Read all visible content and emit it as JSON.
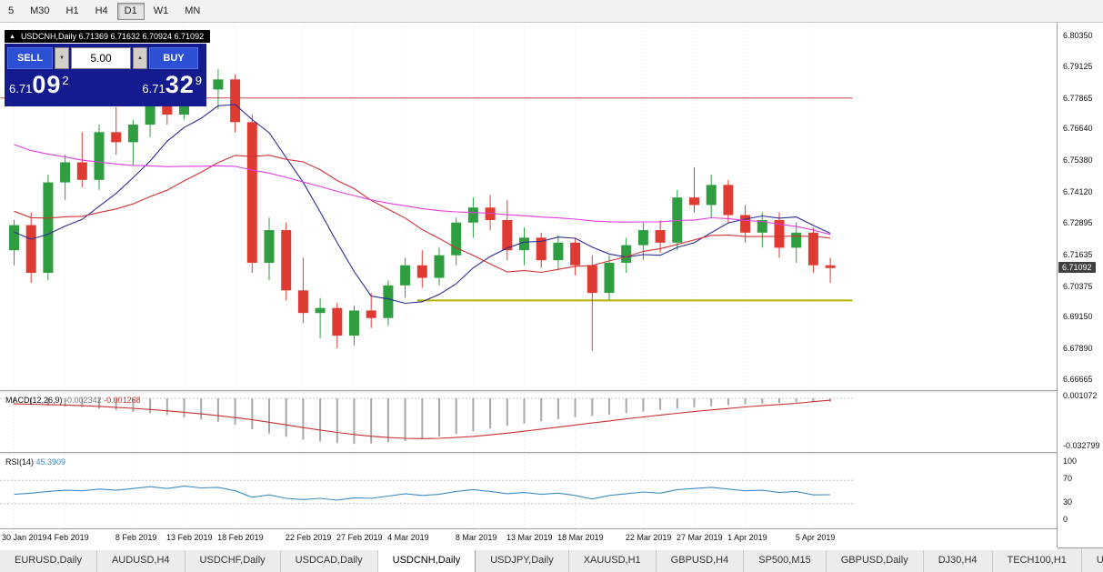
{
  "toolbar": {
    "periods": [
      {
        "label": "5",
        "active": false
      },
      {
        "label": "M30",
        "active": false
      },
      {
        "label": "H1",
        "active": false
      },
      {
        "label": "H4",
        "active": false
      },
      {
        "label": "D1",
        "active": true
      },
      {
        "label": "W1",
        "active": false
      },
      {
        "label": "MN",
        "active": false
      }
    ]
  },
  "ohlc_bar": {
    "collapse_icon": "▲",
    "text": "USDCNH,Daily 6.71369 6.71632 6.70924 6.71092"
  },
  "trade_panel": {
    "sell_label": "SELL",
    "buy_label": "BUY",
    "volume": "5.00",
    "down_glyph": "▼",
    "up_glyph": "▲",
    "sell_price": {
      "small": "6.71",
      "big": "09",
      "sup": "2"
    },
    "buy_price": {
      "small": "6.71",
      "big": "32",
      "sup": "9"
    }
  },
  "price_axis": {
    "labels": [
      "6.80350",
      "6.79125",
      "6.77865",
      "6.76640",
      "6.75380",
      "6.74120",
      "6.72895",
      "6.71635",
      "6.70375",
      "6.69150",
      "6.67890",
      "6.66665"
    ],
    "current": "6.71092"
  },
  "macd_panel": {
    "label": "MACD(12,26,9)",
    "value_main": "-0.002342",
    "value_signal": "-0.001268",
    "axis_top": "0.001072",
    "axis_bottom": "-0.032799"
  },
  "rsi_panel": {
    "label": "RSI(14)",
    "value": "45.3909",
    "levels": [
      "100",
      "70",
      "30",
      "0"
    ]
  },
  "date_axis": {
    "labels": [
      {
        "text": "30 Jan 2019",
        "index": 0
      },
      {
        "text": "4 Feb 2019",
        "index": 3
      },
      {
        "text": "8 Feb 2019",
        "index": 7
      },
      {
        "text": "13 Feb 2019",
        "index": 10
      },
      {
        "text": "18 Feb 2019",
        "index": 13
      },
      {
        "text": "22 Feb 2019",
        "index": 17
      },
      {
        "text": "27 Feb 2019",
        "index": 20
      },
      {
        "text": "4 Mar 2019",
        "index": 23
      },
      {
        "text": "8 Mar 2019",
        "index": 27
      },
      {
        "text": "13 Mar 2019",
        "index": 30
      },
      {
        "text": "18 Mar 2019",
        "index": 33
      },
      {
        "text": "22 Mar 2019",
        "index": 37
      },
      {
        "text": "27 Mar 2019",
        "index": 40
      },
      {
        "text": "1 Apr 2019",
        "index": 43
      },
      {
        "text": "5 Apr 2019",
        "index": 47
      }
    ]
  },
  "tabs": {
    "items": [
      {
        "label": "EURUSD,Daily",
        "active": false
      },
      {
        "label": "AUDUSD,H4",
        "active": false
      },
      {
        "label": "USDCHF,Daily",
        "active": false
      },
      {
        "label": "USDCAD,Daily",
        "active": false
      },
      {
        "label": "USDCNH,Daily",
        "active": true
      },
      {
        "label": "USDJPY,Daily",
        "active": false
      },
      {
        "label": "XAUUSD,H1",
        "active": false
      },
      {
        "label": "GBPUSD,H4",
        "active": false
      },
      {
        "label": "SP500,M15",
        "active": false
      },
      {
        "label": "GBPUSD,Daily",
        "active": false
      },
      {
        "label": "DJ30,H4",
        "active": false
      },
      {
        "label": "TECH100,H1",
        "active": false
      },
      {
        "label": "UKC",
        "active": false
      }
    ]
  },
  "chart_data": {
    "type": "candlestick",
    "symbol": "USDCNH",
    "timeframe": "Daily",
    "ohlc_display": {
      "open": "6.71369",
      "high": "6.71632",
      "low": "6.70924",
      "close": "6.71092"
    },
    "current_price": 6.71092,
    "dates": [
      "2019-01-30",
      "2019-01-31",
      "2019-02-01",
      "2019-02-04",
      "2019-02-05",
      "2019-02-06",
      "2019-02-07",
      "2019-02-08",
      "2019-02-11",
      "2019-02-12",
      "2019-02-13",
      "2019-02-14",
      "2019-02-15",
      "2019-02-18",
      "2019-02-19",
      "2019-02-20",
      "2019-02-21",
      "2019-02-22",
      "2019-02-25",
      "2019-02-26",
      "2019-02-27",
      "2019-02-28",
      "2019-03-01",
      "2019-03-04",
      "2019-03-05",
      "2019-03-06",
      "2019-03-07",
      "2019-03-08",
      "2019-03-11",
      "2019-03-12",
      "2019-03-13",
      "2019-03-14",
      "2019-03-15",
      "2019-03-18",
      "2019-03-19",
      "2019-03-20",
      "2019-03-21",
      "2019-03-22",
      "2019-03-25",
      "2019-03-26",
      "2019-03-27",
      "2019-03-28",
      "2019-03-29",
      "2019-04-01",
      "2019-04-02",
      "2019-04-03",
      "2019-04-04",
      "2019-04-05",
      "2019-04-08"
    ],
    "candles": {
      "o": [
        6.718,
        6.728,
        6.709,
        6.745,
        6.753,
        6.746,
        6.765,
        6.761,
        6.768,
        6.781,
        6.772,
        6.789,
        6.782,
        6.786,
        6.769,
        6.713,
        6.726,
        6.702,
        6.693,
        6.695,
        6.684,
        6.694,
        6.691,
        6.704,
        6.712,
        6.707,
        6.716,
        6.729,
        6.735,
        6.73,
        6.718,
        6.723,
        6.714,
        6.721,
        6.712,
        6.701,
        6.713,
        6.72,
        6.726,
        6.721,
        6.739,
        6.736,
        6.744,
        6.732,
        6.725,
        6.73,
        6.719,
        6.725,
        6.712
      ],
      "h": [
        6.73,
        6.733,
        6.748,
        6.756,
        6.765,
        6.768,
        6.775,
        6.77,
        6.784,
        6.788,
        6.792,
        6.7925,
        6.79,
        6.788,
        6.772,
        6.731,
        6.729,
        6.715,
        6.699,
        6.697,
        6.696,
        6.701,
        6.706,
        6.715,
        6.718,
        6.719,
        6.731,
        6.739,
        6.74,
        6.738,
        6.727,
        6.725,
        6.724,
        6.723,
        6.716,
        6.716,
        6.723,
        6.729,
        6.73,
        6.742,
        6.751,
        6.748,
        6.746,
        6.736,
        6.733,
        6.733,
        6.729,
        6.727,
        6.715
      ],
      "l": [
        6.712,
        6.705,
        6.706,
        6.738,
        6.743,
        6.742,
        6.756,
        6.752,
        6.763,
        6.768,
        6.77,
        6.778,
        6.774,
        6.765,
        6.709,
        6.706,
        6.698,
        6.689,
        6.683,
        6.679,
        6.68,
        6.687,
        6.688,
        6.699,
        6.703,
        6.704,
        6.712,
        6.723,
        6.726,
        6.714,
        6.712,
        6.711,
        6.71,
        6.708,
        6.678,
        6.698,
        6.709,
        6.714,
        6.717,
        6.718,
        6.733,
        6.731,
        6.729,
        6.721,
        6.719,
        6.715,
        6.713,
        6.709,
        6.705
      ],
      "c": [
        6.728,
        6.709,
        6.745,
        6.753,
        6.746,
        6.765,
        6.761,
        6.768,
        6.781,
        6.772,
        6.789,
        6.782,
        6.786,
        6.769,
        6.713,
        6.726,
        6.702,
        6.693,
        6.695,
        6.684,
        6.694,
        6.691,
        6.704,
        6.712,
        6.707,
        6.716,
        6.729,
        6.735,
        6.73,
        6.718,
        6.723,
        6.714,
        6.721,
        6.712,
        6.701,
        6.713,
        6.72,
        6.726,
        6.721,
        6.739,
        6.736,
        6.744,
        6.732,
        6.725,
        6.73,
        6.719,
        6.725,
        6.712,
        6.7109
      ]
    },
    "colors": {
      "up": "#2f9e41",
      "down": "#df3b32",
      "ma_fast": "#2c2c96",
      "ma_medium": "#d23434",
      "ma_slow": "#e13ee1",
      "macd_hist": "#a8a8a8",
      "macd_signal": "#c83232",
      "rsi": "#3f8dc4",
      "resistance": "#c04848",
      "support": "#b4b400",
      "badge_bg": "#404040"
    },
    "moving_averages": [
      {
        "name": "ma-fast-line",
        "window": 8,
        "color_key": "ma_fast"
      },
      {
        "name": "ma-medium-line",
        "window": 16,
        "color_key": "ma_medium"
      },
      {
        "name": "ma-slow-line",
        "window": 40,
        "color_key": "ma_slow"
      }
    ],
    "ma_warmup_closes": [
      6.806,
      6.804,
      6.801,
      6.799,
      6.797,
      6.795,
      6.792,
      6.79,
      6.788,
      6.786,
      6.783,
      6.781,
      6.779,
      6.777,
      6.774,
      6.772,
      6.77,
      6.768,
      6.765,
      6.763,
      6.761,
      6.759,
      6.756,
      6.754,
      6.752,
      6.75,
      6.747,
      6.745,
      6.743,
      6.741,
      6.738,
      6.736,
      6.734,
      6.732,
      6.729,
      6.727,
      6.725,
      6.723,
      6.72,
      6.718
    ],
    "hlines": [
      {
        "name": "resistance-line",
        "price": 6.7786,
        "start_index": -0.5,
        "end_index": 49.6,
        "color_key": "resistance",
        "width": 1
      },
      {
        "name": "support-line",
        "price": 6.698,
        "start_index": 24,
        "end_index": 49.6,
        "color_key": "support",
        "width": 2
      }
    ],
    "macd": {
      "histogram": [
        -0.004,
        -0.0045,
        -0.005,
        -0.0055,
        -0.006,
        -0.007,
        -0.008,
        -0.009,
        -0.01,
        -0.0115,
        -0.013,
        -0.0145,
        -0.016,
        -0.018,
        -0.021,
        -0.024,
        -0.0262,
        -0.028,
        -0.0295,
        -0.0305,
        -0.031,
        -0.0308,
        -0.03,
        -0.029,
        -0.0275,
        -0.026,
        -0.0242,
        -0.0225,
        -0.0205,
        -0.0188,
        -0.0172,
        -0.0156,
        -0.0142,
        -0.013,
        -0.012,
        -0.011,
        -0.01,
        -0.009,
        -0.008,
        -0.007,
        -0.0061,
        -0.0053,
        -0.0046,
        -0.004,
        -0.0035,
        -0.0031,
        -0.0028,
        -0.0025,
        -0.0023
      ],
      "signal": [
        -0.0038,
        -0.004,
        -0.0043,
        -0.0046,
        -0.005,
        -0.0055,
        -0.0061,
        -0.0068,
        -0.0076,
        -0.0085,
        -0.0095,
        -0.0106,
        -0.0118,
        -0.0131,
        -0.0146,
        -0.0163,
        -0.0181,
        -0.0199,
        -0.0216,
        -0.0232,
        -0.0246,
        -0.0258,
        -0.0267,
        -0.0272,
        -0.0274,
        -0.0272,
        -0.0267,
        -0.0259,
        -0.0249,
        -0.0237,
        -0.0224,
        -0.021,
        -0.0196,
        -0.0182,
        -0.0168,
        -0.0154,
        -0.014,
        -0.0127,
        -0.0114,
        -0.0102,
        -0.009,
        -0.0079,
        -0.0069,
        -0.0059,
        -0.005,
        -0.0042,
        -0.0034,
        -0.0023,
        -0.0013
      ]
    },
    "rsi": {
      "values": [
        46,
        48,
        51,
        53,
        52,
        55,
        53,
        56,
        59,
        56,
        60,
        57,
        58,
        52,
        41,
        45,
        39,
        37,
        39,
        36,
        40,
        39,
        43,
        47,
        44,
        46,
        51,
        54,
        51,
        47,
        49,
        46,
        48,
        44,
        38,
        44,
        47,
        50,
        48,
        54,
        56,
        58,
        55,
        52,
        53,
        49,
        51,
        45,
        45.39
      ],
      "levels": [
        70,
        30
      ]
    }
  }
}
